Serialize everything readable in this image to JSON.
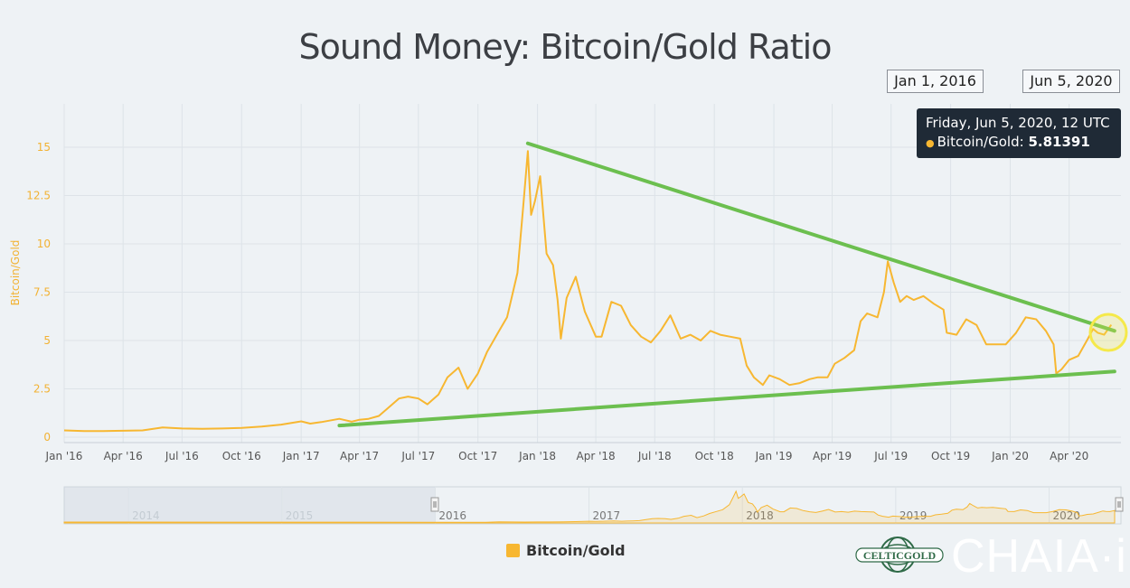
{
  "title": "Sound Money: Bitcoin/Gold Ratio",
  "range_from": "Jan 1, 2016",
  "range_to": "Jun 5, 2020",
  "tooltip": {
    "date": "Friday, Jun 5, 2020, 12 UTC",
    "series": "Bitcoin/Gold:",
    "value": "5.81391"
  },
  "legend_label": "Bitcoin/Gold",
  "logo_text": "CELTICGOLD",
  "brand_text": "CHAIA·i",
  "colors": {
    "series": "#f7b731",
    "trendline": "#6cbf4f",
    "tooltip_bg": "#1f2a36",
    "highlight": "#f5e94a"
  },
  "chart_data": {
    "type": "line",
    "title": "Sound Money: Bitcoin/Gold Ratio",
    "ylabel": "Bitcoin/Gold",
    "ylim": [
      0,
      15
    ],
    "yticks": [
      "0",
      "2.5",
      "5",
      "7.5",
      "10",
      "12.5",
      "15"
    ],
    "xticks": [
      {
        "date": "2016-01-01",
        "label": "Jan '16"
      },
      {
        "date": "2016-04-01",
        "label": "Apr '16"
      },
      {
        "date": "2016-07-01",
        "label": "Jul '16"
      },
      {
        "date": "2016-10-01",
        "label": "Oct '16"
      },
      {
        "date": "2017-01-01",
        "label": "Jan '17"
      },
      {
        "date": "2017-04-01",
        "label": "Apr '17"
      },
      {
        "date": "2017-07-01",
        "label": "Jul '17"
      },
      {
        "date": "2017-10-01",
        "label": "Oct '17"
      },
      {
        "date": "2018-01-01",
        "label": "Jan '18"
      },
      {
        "date": "2018-04-01",
        "label": "Apr '18"
      },
      {
        "date": "2018-07-01",
        "label": "Jul '18"
      },
      {
        "date": "2018-10-01",
        "label": "Oct '18"
      },
      {
        "date": "2019-01-01",
        "label": "Jan '19"
      },
      {
        "date": "2019-04-01",
        "label": "Apr '19"
      },
      {
        "date": "2019-07-01",
        "label": "Jul '19"
      },
      {
        "date": "2019-10-01",
        "label": "Oct '19"
      },
      {
        "date": "2020-01-01",
        "label": "Jan '20"
      },
      {
        "date": "2020-04-01",
        "label": "Apr '20"
      }
    ],
    "grid": true,
    "series": [
      {
        "name": "Bitcoin/Gold",
        "points": [
          [
            "2016-01-01",
            0.35
          ],
          [
            "2016-02-01",
            0.32
          ],
          [
            "2016-03-01",
            0.32
          ],
          [
            "2016-04-01",
            0.33
          ],
          [
            "2016-05-01",
            0.35
          ],
          [
            "2016-06-01",
            0.5
          ],
          [
            "2016-07-01",
            0.45
          ],
          [
            "2016-08-01",
            0.43
          ],
          [
            "2016-09-01",
            0.45
          ],
          [
            "2016-10-01",
            0.48
          ],
          [
            "2016-11-01",
            0.55
          ],
          [
            "2016-12-01",
            0.65
          ],
          [
            "2017-01-01",
            0.82
          ],
          [
            "2017-01-15",
            0.7
          ],
          [
            "2017-02-01",
            0.78
          ],
          [
            "2017-03-01",
            0.95
          ],
          [
            "2017-03-20",
            0.8
          ],
          [
            "2017-04-01",
            0.9
          ],
          [
            "2017-04-15",
            0.95
          ],
          [
            "2017-05-01",
            1.1
          ],
          [
            "2017-05-15",
            1.5
          ],
          [
            "2017-06-01",
            2.0
          ],
          [
            "2017-06-15",
            2.1
          ],
          [
            "2017-07-01",
            2.0
          ],
          [
            "2017-07-15",
            1.7
          ],
          [
            "2017-08-01",
            2.2
          ],
          [
            "2017-08-15",
            3.1
          ],
          [
            "2017-09-01",
            3.6
          ],
          [
            "2017-09-15",
            2.5
          ],
          [
            "2017-10-01",
            3.3
          ],
          [
            "2017-10-15",
            4.4
          ],
          [
            "2017-11-01",
            5.4
          ],
          [
            "2017-11-15",
            6.2
          ],
          [
            "2017-12-01",
            8.5
          ],
          [
            "2017-12-10",
            12.0
          ],
          [
            "2017-12-17",
            14.8
          ],
          [
            "2017-12-22",
            11.5
          ],
          [
            "2017-12-28",
            12.2
          ],
          [
            "2018-01-05",
            13.5
          ],
          [
            "2018-01-15",
            9.5
          ],
          [
            "2018-01-25",
            8.9
          ],
          [
            "2018-02-01",
            7.1
          ],
          [
            "2018-02-06",
            5.1
          ],
          [
            "2018-02-15",
            7.2
          ],
          [
            "2018-03-01",
            8.3
          ],
          [
            "2018-03-15",
            6.5
          ],
          [
            "2018-04-01",
            5.2
          ],
          [
            "2018-04-10",
            5.2
          ],
          [
            "2018-04-25",
            7.0
          ],
          [
            "2018-05-10",
            6.8
          ],
          [
            "2018-05-25",
            5.8
          ],
          [
            "2018-06-10",
            5.2
          ],
          [
            "2018-06-25",
            4.9
          ],
          [
            "2018-07-10",
            5.5
          ],
          [
            "2018-07-25",
            6.3
          ],
          [
            "2018-08-10",
            5.1
          ],
          [
            "2018-08-25",
            5.3
          ],
          [
            "2018-09-10",
            5.0
          ],
          [
            "2018-09-25",
            5.5
          ],
          [
            "2018-10-10",
            5.3
          ],
          [
            "2018-10-25",
            5.2
          ],
          [
            "2018-11-10",
            5.1
          ],
          [
            "2018-11-20",
            3.7
          ],
          [
            "2018-12-01",
            3.1
          ],
          [
            "2018-12-15",
            2.7
          ],
          [
            "2018-12-25",
            3.2
          ],
          [
            "2019-01-10",
            3.0
          ],
          [
            "2019-01-25",
            2.7
          ],
          [
            "2019-02-10",
            2.8
          ],
          [
            "2019-02-25",
            3.0
          ],
          [
            "2019-03-10",
            3.1
          ],
          [
            "2019-03-25",
            3.1
          ],
          [
            "2019-04-05",
            3.8
          ],
          [
            "2019-04-20",
            4.1
          ],
          [
            "2019-05-05",
            4.5
          ],
          [
            "2019-05-15",
            6.0
          ],
          [
            "2019-05-25",
            6.4
          ],
          [
            "2019-06-10",
            6.2
          ],
          [
            "2019-06-20",
            7.5
          ],
          [
            "2019-06-26",
            9.1
          ],
          [
            "2019-07-05",
            8.0
          ],
          [
            "2019-07-15",
            7.0
          ],
          [
            "2019-07-25",
            7.3
          ],
          [
            "2019-08-05",
            7.1
          ],
          [
            "2019-08-20",
            7.3
          ],
          [
            "2019-09-05",
            6.9
          ],
          [
            "2019-09-20",
            6.6
          ],
          [
            "2019-09-25",
            5.4
          ],
          [
            "2019-10-10",
            5.3
          ],
          [
            "2019-10-25",
            6.1
          ],
          [
            "2019-11-10",
            5.8
          ],
          [
            "2019-11-25",
            4.8
          ],
          [
            "2019-12-10",
            4.8
          ],
          [
            "2019-12-25",
            4.8
          ],
          [
            "2020-01-10",
            5.4
          ],
          [
            "2020-01-25",
            6.2
          ],
          [
            "2020-02-10",
            6.1
          ],
          [
            "2020-02-25",
            5.5
          ],
          [
            "2020-03-08",
            4.8
          ],
          [
            "2020-03-12",
            3.3
          ],
          [
            "2020-03-20",
            3.5
          ],
          [
            "2020-04-01",
            4.0
          ],
          [
            "2020-04-15",
            4.2
          ],
          [
            "2020-04-30",
            5.1
          ],
          [
            "2020-05-08",
            5.6
          ],
          [
            "2020-05-15",
            5.4
          ],
          [
            "2020-05-25",
            5.3
          ],
          [
            "2020-06-05",
            5.81391
          ]
        ]
      }
    ],
    "trendlines": [
      {
        "from": [
          "2017-12-17",
          15.2
        ],
        "to": [
          "2020-06-10",
          5.5
        ]
      },
      {
        "from": [
          "2017-03-01",
          0.6
        ],
        "to": [
          "2020-06-10",
          3.4
        ]
      }
    ],
    "navigator": {
      "year_labels": [
        "2014",
        "2015",
        "2016",
        "2017",
        "2018",
        "2019",
        "2020"
      ]
    }
  }
}
